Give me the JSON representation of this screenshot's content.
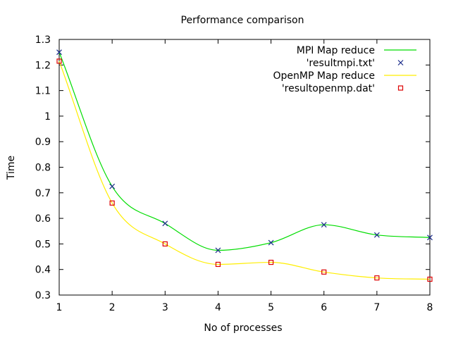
{
  "chart_data": {
    "type": "line",
    "title": "Performance comparison",
    "xlabel": "No of processes",
    "ylabel": "Time",
    "xlim": [
      1,
      8
    ],
    "ylim": [
      0.3,
      1.3
    ],
    "x_ticks": [
      1,
      2,
      3,
      4,
      5,
      6,
      7,
      8
    ],
    "y_ticks": [
      "0.3",
      "0.4",
      "0.5",
      "0.6",
      "0.7",
      "0.8",
      "0.9",
      "1",
      "1.1",
      "1.2",
      "1.3"
    ],
    "grid": false,
    "legend_position": "top-right",
    "series": [
      {
        "name": "MPI Map reduce",
        "style": "smooth-line",
        "color": "#00dd00",
        "x": [
          1,
          2,
          3,
          4,
          5,
          6,
          7,
          8
        ],
        "values": [
          1.25,
          0.725,
          0.58,
          0.475,
          0.505,
          0.575,
          0.535,
          0.525
        ]
      },
      {
        "name": "'resultmpi.txt'",
        "style": "x-markers",
        "color": "#1a2b8a",
        "x": [
          1,
          2,
          3,
          4,
          5,
          6,
          7,
          8
        ],
        "values": [
          1.25,
          0.725,
          0.58,
          0.475,
          0.505,
          0.575,
          0.535,
          0.525
        ]
      },
      {
        "name": "OpenMP Map reduce",
        "style": "smooth-line",
        "color": "#ffee00",
        "x": [
          1,
          2,
          3,
          4,
          5,
          6,
          7,
          8
        ],
        "values": [
          1.215,
          0.66,
          0.5,
          0.42,
          0.428,
          0.39,
          0.367,
          0.362
        ]
      },
      {
        "name": "'resultopenmp.dat'",
        "style": "square-markers",
        "color": "#dd0000",
        "x": [
          1,
          2,
          3,
          4,
          5,
          6,
          7,
          8
        ],
        "values": [
          1.215,
          0.66,
          0.5,
          0.42,
          0.428,
          0.39,
          0.367,
          0.362
        ]
      }
    ]
  }
}
